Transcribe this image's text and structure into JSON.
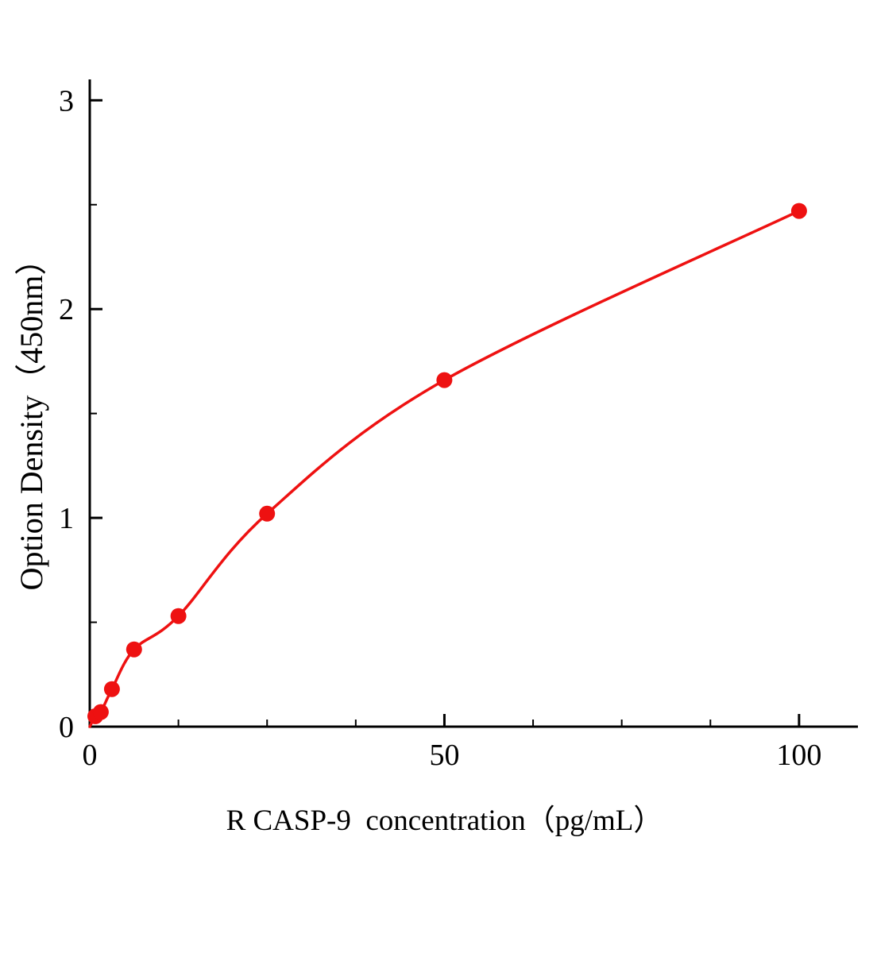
{
  "chart_data": {
    "type": "scatter",
    "title": "",
    "xlabel": "R CASP-9  concentration（pg/mL）",
    "ylabel": "Option Density（450nm）",
    "x": [
      0.78,
      1.56,
      3.125,
      6.25,
      12.5,
      25,
      50,
      100
    ],
    "y": [
      0.05,
      0.07,
      0.18,
      0.37,
      0.53,
      1.02,
      1.66,
      2.47
    ],
    "curve_origin": {
      "x": 0,
      "y": 0
    },
    "xlim": [
      0,
      108.3
    ],
    "ylim": [
      0,
      3.1
    ],
    "x_major_ticks": [
      0,
      50,
      100
    ],
    "x_minor_step": 12.5,
    "y_major_ticks": [
      0,
      1,
      2,
      3
    ],
    "y_minor_step": 0.5,
    "line_color": "#ee1111",
    "marker_color": "#ee1111",
    "axis_color": "#000000",
    "legend": "none",
    "grid": "off"
  }
}
